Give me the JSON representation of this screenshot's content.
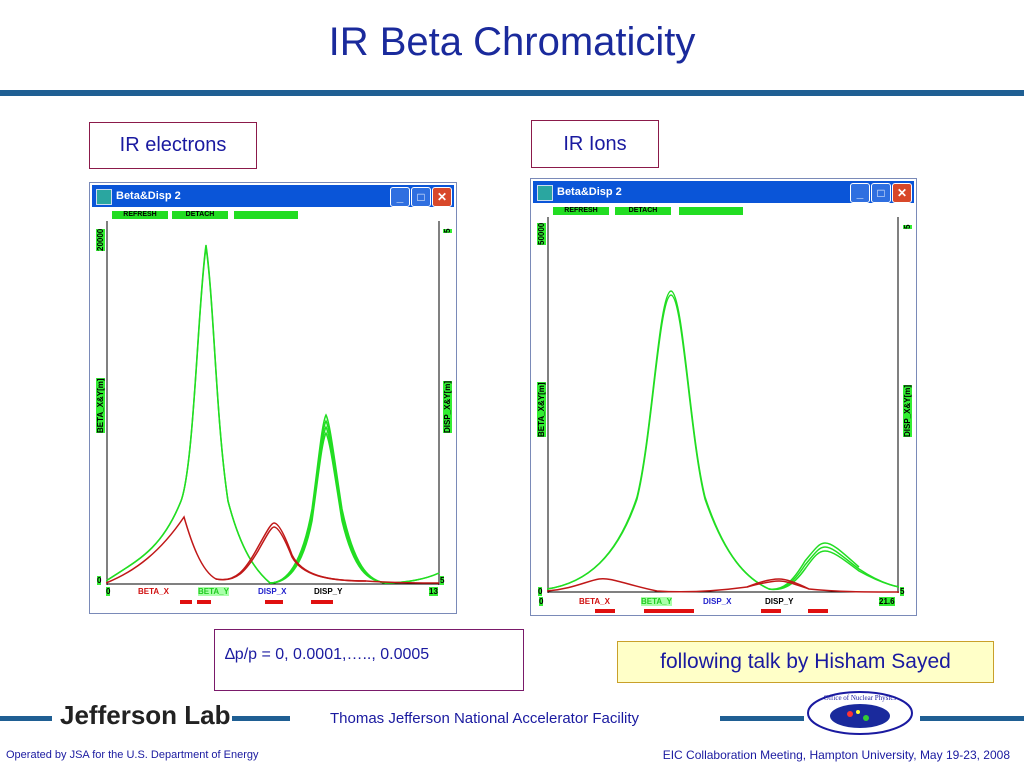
{
  "title": "IR Beta Chromaticity",
  "left_label": "IR electrons",
  "right_label": "IR Ions",
  "left_window": {
    "title": "Beta&Disp 2",
    "refresh": "REFRESH",
    "detach": "DETACH",
    "y_top": "20000",
    "y_bottom": "0",
    "y_left_label": "BETA_X&Y[m]",
    "y_right_top": "5",
    "y_right_bottom": "5",
    "y_right_label": "DISP_X&Y[m]",
    "x_start": "0",
    "x_end": "13",
    "legend": [
      "BETA_X",
      "BETA_Y",
      "DISP_X",
      "DISP_Y"
    ]
  },
  "right_window": {
    "title": "Beta&Disp 2",
    "refresh": "REFRESH",
    "detach": "DETACH",
    "y_top": "50000",
    "y_bottom": "0",
    "y_left_label": "BETA_X&Y[m]",
    "y_right_top": "5",
    "y_right_bottom": "5",
    "y_right_label": "DISP_X&Y[m]",
    "x_start": "0",
    "x_end": "21.6",
    "legend": [
      "BETA_X",
      "BETA_Y",
      "DISP_X",
      "DISP_Y"
    ]
  },
  "dp_text": "∆p/p = 0, 0.0001,….., 0.0005",
  "follow_text": "following talk by Hisham Sayed",
  "footer_center": "Thomas Jefferson National Accelerator Facility",
  "footer_left": "Operated by JSA for the U.S. Department of Energy",
  "footer_right": "EIC Collaboration Meeting, Hampton University, May 19-23, 2008",
  "logo_left": "Jefferson Lab",
  "logo_right": "Office of Nuclear Physics",
  "colors": {
    "title": "#1a2a9c",
    "rule": "#1f5f93",
    "beta_y": "#22dd22",
    "beta_x": "#c01818"
  }
}
